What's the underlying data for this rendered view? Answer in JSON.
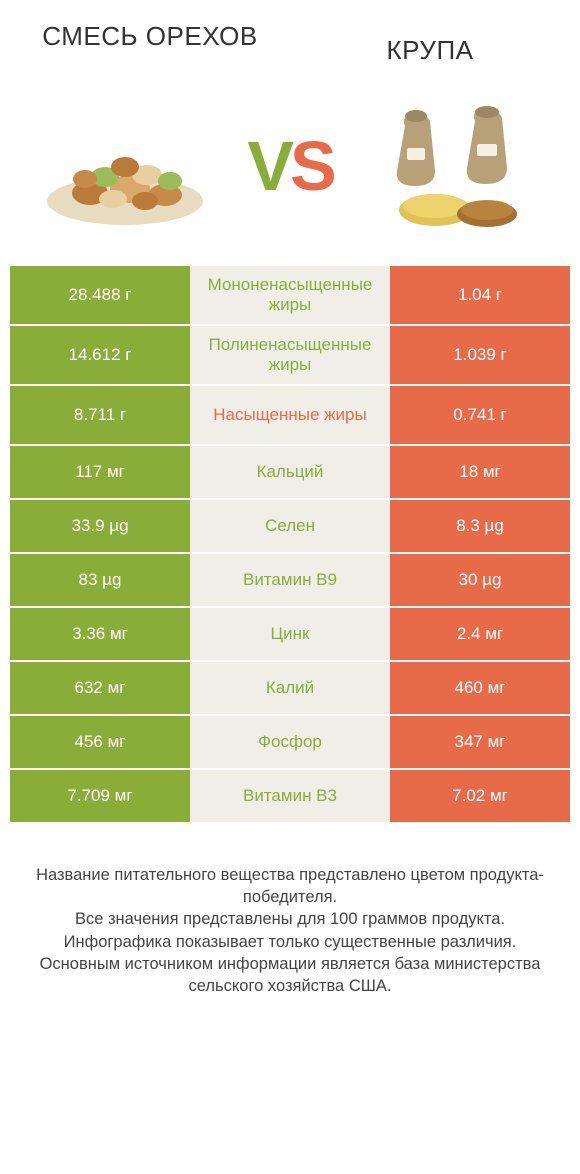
{
  "colors": {
    "green": "#8aad3a",
    "orange": "#e86b49",
    "mid_bg": "#f0efe7",
    "text_dark": "#333333"
  },
  "left_title": "СМЕСЬ ОРЕХОВ",
  "right_title": "КРУПА",
  "vs": {
    "v": "V",
    "s": "S"
  },
  "rows": [
    {
      "left": "28.488 г",
      "mid": "Мононенасыщенные жиры",
      "right": "1.04 г",
      "winner": "left",
      "tall": true
    },
    {
      "left": "14.612 г",
      "mid": "Полиненасыщенные жиры",
      "right": "1.039 г",
      "winner": "left",
      "tall": true
    },
    {
      "left": "8.711 г",
      "mid": "Насыщенные жиры",
      "right": "0.741 г",
      "winner": "right",
      "tall": true
    },
    {
      "left": "117 мг",
      "mid": "Кальций",
      "right": "18 мг",
      "winner": "left",
      "tall": false
    },
    {
      "left": "33.9 µg",
      "mid": "Селен",
      "right": "8.3 µg",
      "winner": "left",
      "tall": false
    },
    {
      "left": "83 µg",
      "mid": "Витамин B9",
      "right": "30 µg",
      "winner": "left",
      "tall": false
    },
    {
      "left": "3.36 мг",
      "mid": "Цинк",
      "right": "2.4 мг",
      "winner": "left",
      "tall": false
    },
    {
      "left": "632 мг",
      "mid": "Калий",
      "right": "460 мг",
      "winner": "left",
      "tall": false
    },
    {
      "left": "456 мг",
      "mid": "Фосфор",
      "right": "347 мг",
      "winner": "left",
      "tall": false
    },
    {
      "left": "7.709 мг",
      "mid": "Витамин B3",
      "right": "7.02 мг",
      "winner": "left",
      "tall": false
    }
  ],
  "footer": [
    "Название питательного вещества представлено цветом продукта-победителя.",
    "Все значения представлены для 100 граммов продукта.",
    "Инфографика показывает только существенные различия.",
    "Основным источником информации является база министерства сельского хозяйства США."
  ]
}
